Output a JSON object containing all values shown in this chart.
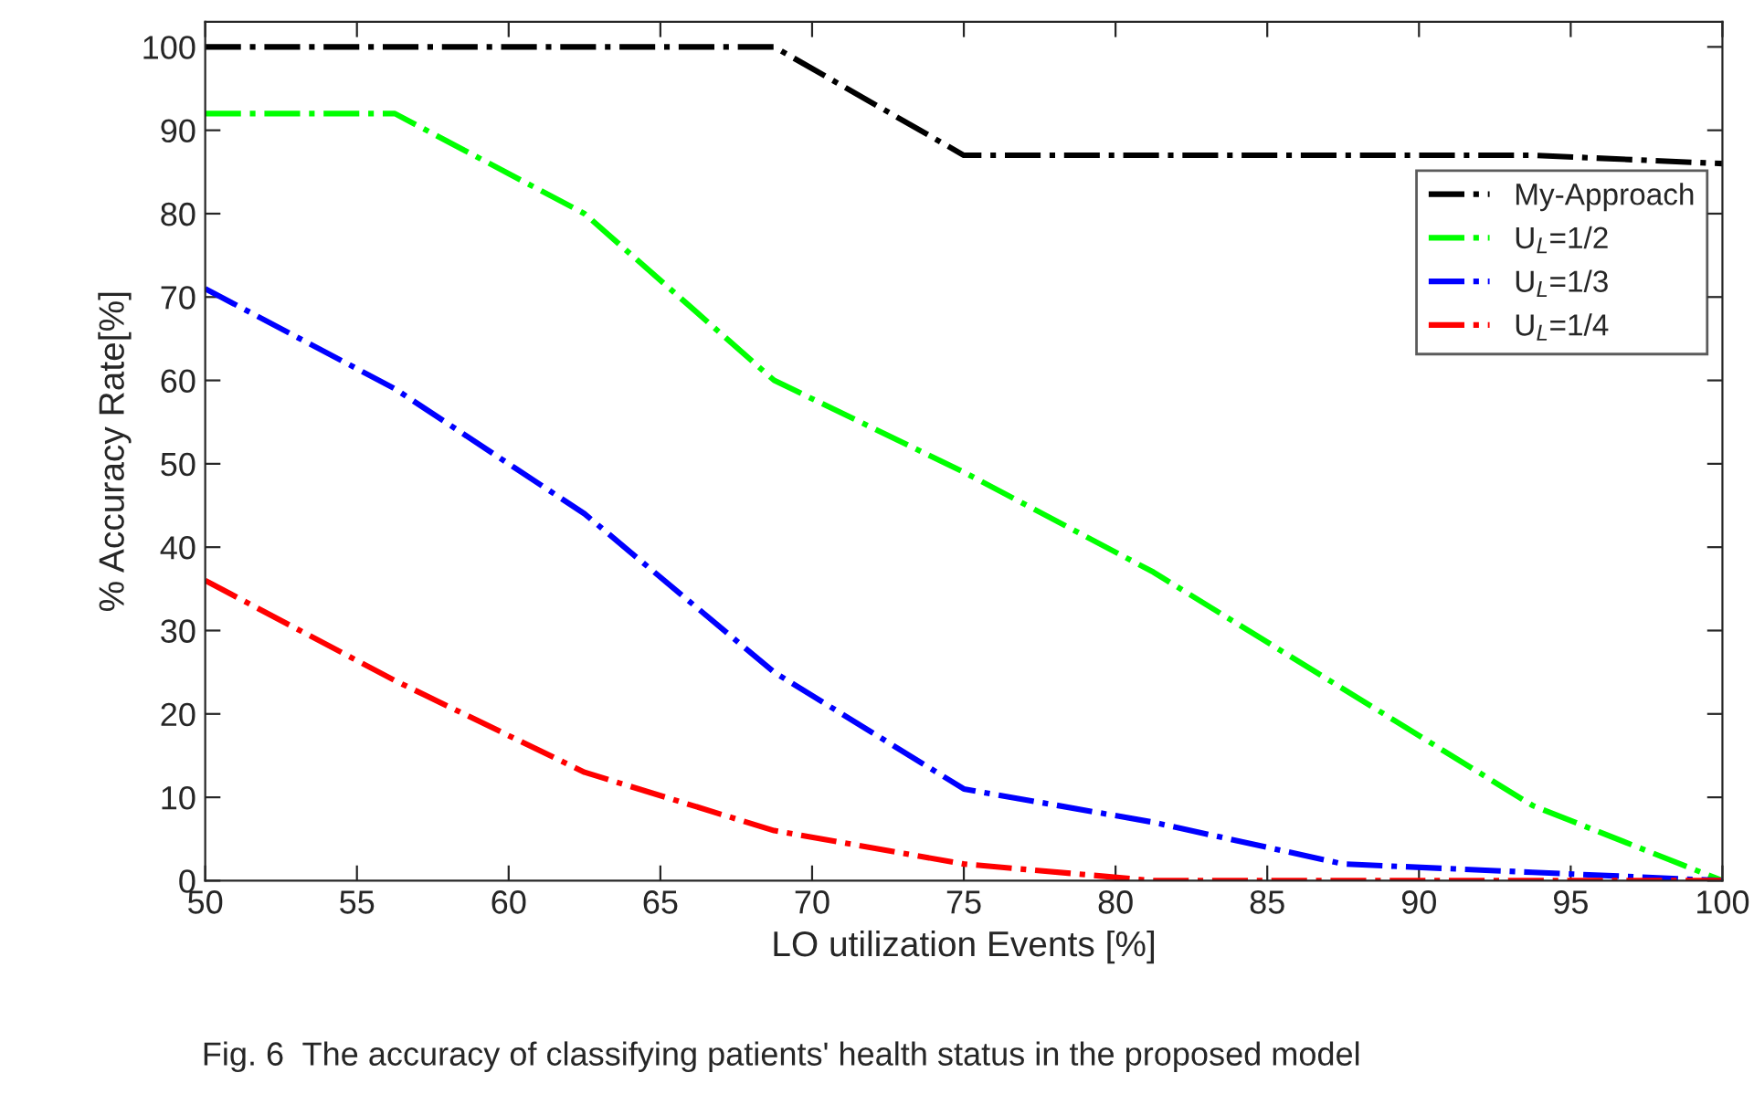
{
  "chart_data": {
    "type": "line",
    "xlabel": "LO utilization Events [%]",
    "ylabel": "% Accuracy Rate[%]",
    "x": [
      50,
      56.25,
      62.5,
      68.75,
      75,
      81.25,
      87.5,
      93.75,
      100
    ],
    "series": [
      {
        "name": "My-Approach",
        "color": "#000000",
        "values": [
          100,
          100,
          100,
          100,
          87,
          87,
          87,
          87,
          86
        ]
      },
      {
        "name": "U$_{L}$=1/2",
        "color": "#00ff00",
        "values": [
          92,
          92,
          80,
          60,
          49,
          37,
          23,
          9,
          0
        ]
      },
      {
        "name": "U$_{L}$=1/3",
        "color": "#0000ff",
        "values": [
          71,
          59,
          44,
          25,
          11,
          7,
          2,
          1,
          0
        ]
      },
      {
        "name": "U$_{L}$=1/4",
        "color": "#ff0000",
        "values": [
          36,
          24,
          13,
          6,
          2,
          0,
          0,
          0,
          0
        ]
      }
    ],
    "xlim": [
      50,
      100
    ],
    "xticks": [
      50,
      55,
      60,
      65,
      70,
      75,
      80,
      85,
      90,
      95,
      100
    ],
    "ylim": [
      0,
      103
    ],
    "yticks": [
      0,
      10,
      20,
      30,
      40,
      50,
      60,
      70,
      80,
      90,
      100
    ],
    "grid": false,
    "legend": "right",
    "line_style": "dashdot",
    "marker": "none",
    "annotations": [
      "Fig. 6  The accuracy of classifying patients' health status in the proposed model"
    ]
  }
}
